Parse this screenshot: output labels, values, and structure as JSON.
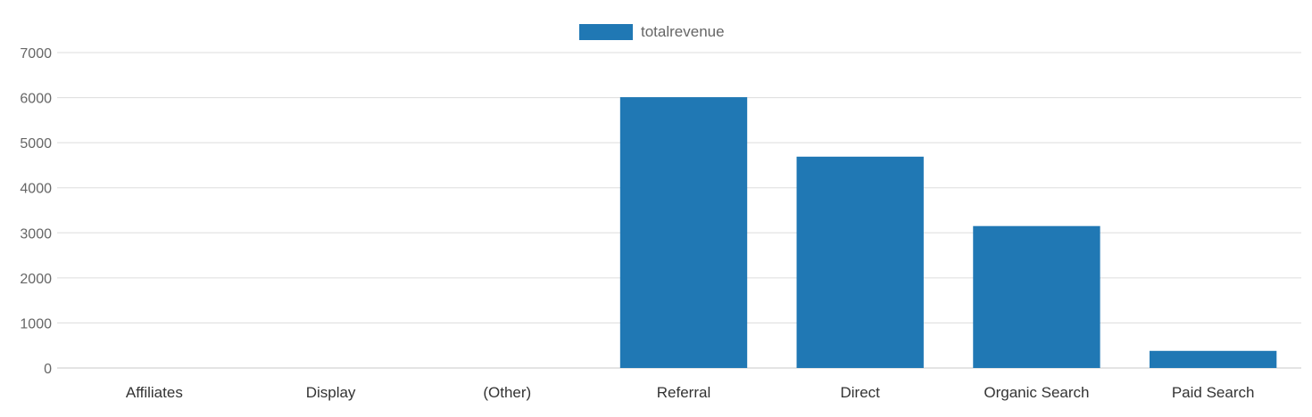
{
  "chart_data": {
    "type": "bar",
    "categories": [
      "Affiliates",
      "Display",
      "(Other)",
      "Referral",
      "Direct",
      "Organic Search",
      "Paid Search"
    ],
    "series": [
      {
        "name": "totalrevenue",
        "values": [
          0,
          0,
          0,
          6010,
          4690,
          3150,
          380
        ]
      }
    ],
    "ylim": [
      0,
      7000
    ],
    "yticks": [
      0,
      1000,
      2000,
      3000,
      4000,
      5000,
      6000,
      7000
    ],
    "grid": true,
    "legend_position": "top-center",
    "colors": {
      "bar": "#2078b4",
      "grid": "#dddddd"
    }
  }
}
